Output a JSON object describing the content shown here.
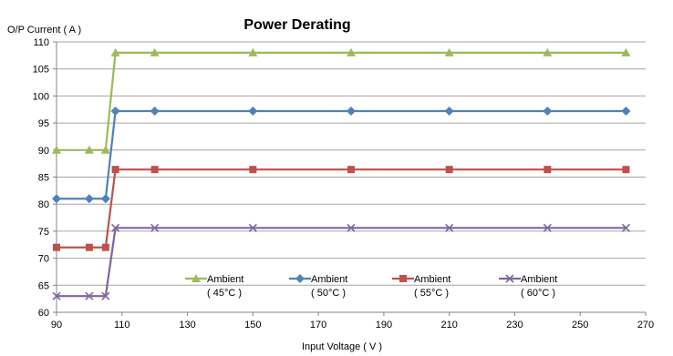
{
  "chart_data": {
    "type": "line",
    "title": "Power Derating",
    "ylabel": "O/P Current ( A )",
    "xlabel": "Input Voltage ( V )",
    "xlim": [
      90,
      270
    ],
    "ylim": [
      60,
      110
    ],
    "xticks": [
      90,
      110,
      130,
      150,
      170,
      190,
      210,
      230,
      250,
      270
    ],
    "yticks": [
      60,
      65,
      70,
      75,
      80,
      85,
      90,
      95,
      100,
      105,
      110
    ],
    "grid": "horizontal",
    "legend_position": "bottom",
    "x": [
      90,
      100,
      105,
      108,
      120,
      150,
      180,
      210,
      240,
      264
    ],
    "series": [
      {
        "name": "Ambient ( 45°C )",
        "legend_line1": "Ambient",
        "legend_line2": "( 45°C )",
        "color": "#9BBB59",
        "marker": "triangle",
        "values": [
          90,
          90,
          90,
          108,
          108,
          108,
          108,
          108,
          108,
          108
        ]
      },
      {
        "name": "Ambient ( 50°C )",
        "legend_line1": "Ambient",
        "legend_line2": "( 50°C )",
        "color": "#4F81BD",
        "marker": "diamond",
        "values": [
          81,
          81,
          81,
          97.2,
          97.2,
          97.2,
          97.2,
          97.2,
          97.2,
          97.2
        ]
      },
      {
        "name": "Ambient ( 55°C )",
        "legend_line1": "Ambient",
        "legend_line2": "( 55°C )",
        "color": "#C0504D",
        "marker": "square",
        "values": [
          72,
          72,
          72,
          86.4,
          86.4,
          86.4,
          86.4,
          86.4,
          86.4,
          86.4
        ]
      },
      {
        "name": "Ambient ( 60°C )",
        "legend_line1": "Ambient",
        "legend_line2": "( 60°C )",
        "color": "#8064A2",
        "marker": "x",
        "values": [
          63,
          63,
          63,
          75.6,
          75.6,
          75.6,
          75.6,
          75.6,
          75.6,
          75.6
        ]
      }
    ]
  }
}
